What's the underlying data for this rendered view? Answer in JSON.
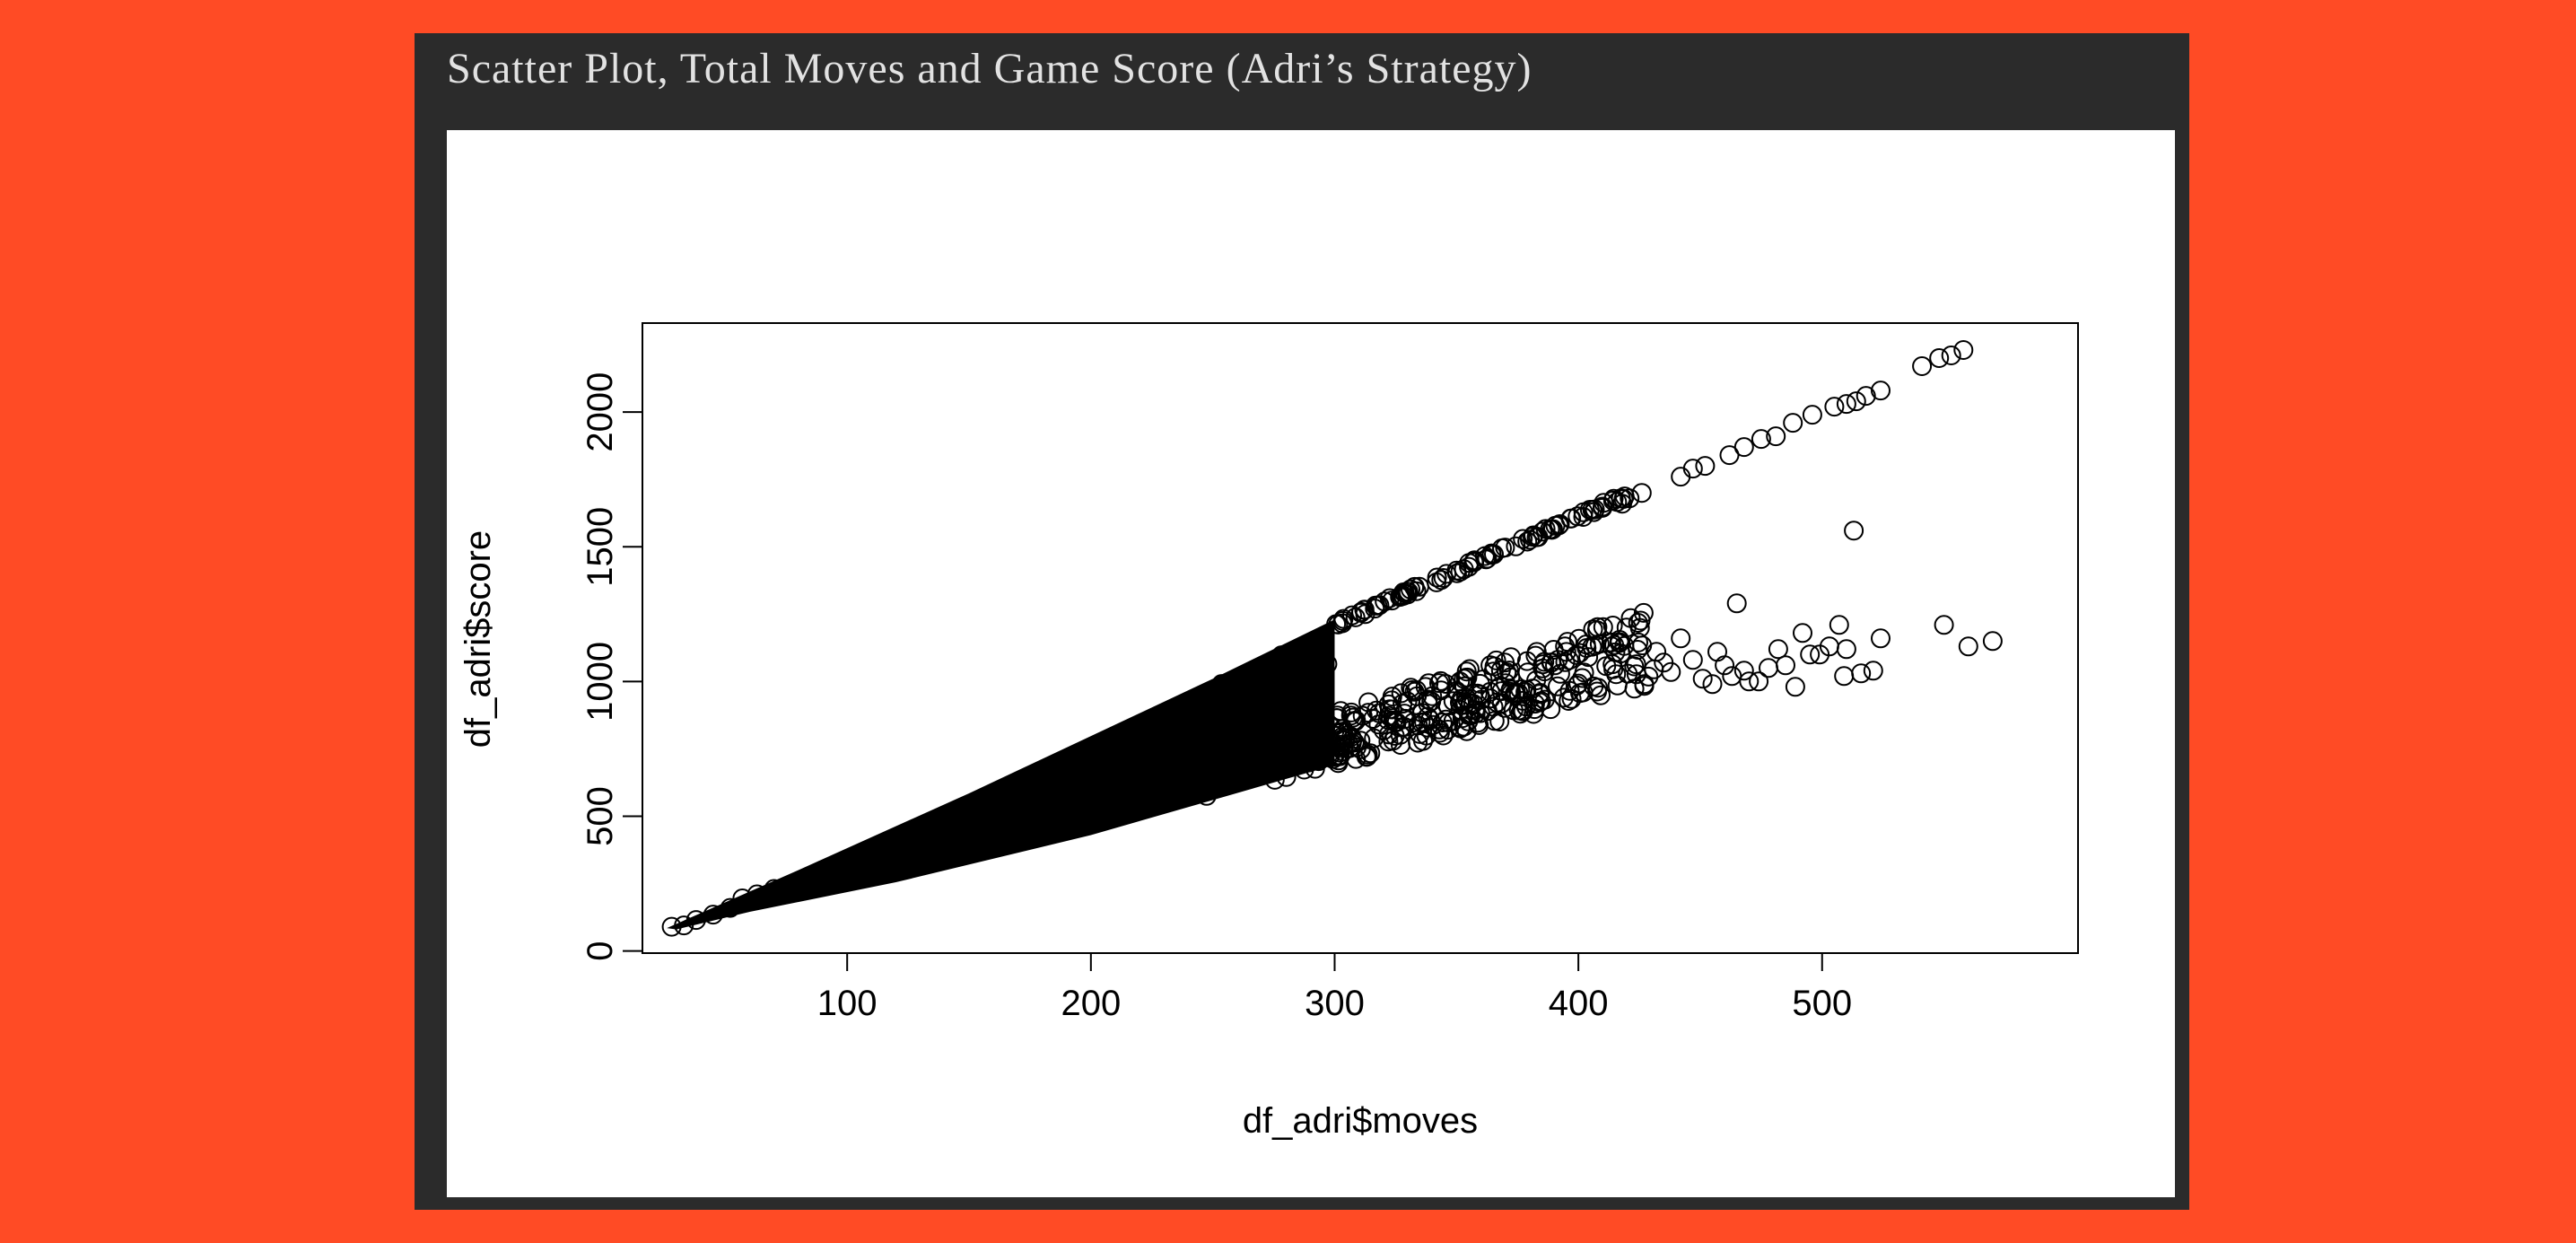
{
  "card": {
    "title": "Scatter Plot, Total Moves and Game Score (Adri’s Strategy)"
  },
  "colors": {
    "background": "#ff4b25",
    "frame": "#2b2b2b",
    "panel": "#ffffff",
    "ink": "#000000"
  },
  "chart_data": {
    "type": "scatter",
    "title": "",
    "xlabel": "df_adri$moves",
    "ylabel": "df_adri$score",
    "xlim": [
      16,
      605
    ],
    "ylim": [
      -8,
      2330
    ],
    "x_ticks": [
      100,
      200,
      300,
      400,
      500
    ],
    "y_ticks": [
      0,
      500,
      1000,
      1500,
      2000
    ],
    "marker": "open-circle",
    "grid": false,
    "legend": "none",
    "series": [
      {
        "points": [
          [
            28,
            90
          ],
          [
            33,
            95
          ],
          [
            38,
            115
          ],
          [
            45,
            135
          ],
          [
            52,
            160
          ],
          [
            57,
            195
          ],
          [
            63,
            210
          ],
          [
            70,
            230
          ],
          [
            80,
            255
          ],
          [
            90,
            300
          ],
          [
            427,
            990
          ],
          [
            431,
            1045
          ],
          [
            432,
            1110
          ],
          [
            435,
            1070
          ],
          [
            438,
            1035
          ],
          [
            442,
            1160
          ],
          [
            447,
            1080
          ],
          [
            451,
            1010
          ],
          [
            455,
            990
          ],
          [
            457,
            1110
          ],
          [
            460,
            1060
          ],
          [
            463,
            1020
          ],
          [
            468,
            1040
          ],
          [
            470,
            1000
          ],
          [
            474,
            1000
          ],
          [
            478,
            1050
          ],
          [
            482,
            1120
          ],
          [
            485,
            1060
          ],
          [
            489,
            980
          ],
          [
            492,
            1180
          ],
          [
            495,
            1100
          ],
          [
            499,
            1100
          ],
          [
            503,
            1130
          ],
          [
            507,
            1210
          ],
          [
            509,
            1020
          ],
          [
            510,
            1120
          ],
          [
            513,
            1560
          ],
          [
            516,
            1030
          ],
          [
            521,
            1040
          ],
          [
            524,
            1160
          ],
          [
            550,
            1210
          ],
          [
            560,
            1130
          ],
          [
            570,
            1150
          ],
          [
            465,
            1290
          ],
          [
            442,
            1760
          ],
          [
            447,
            1790
          ],
          [
            452,
            1800
          ],
          [
            462,
            1840
          ],
          [
            468,
            1870
          ],
          [
            475,
            1900
          ],
          [
            481,
            1910
          ],
          [
            488,
            1960
          ],
          [
            496,
            1990
          ],
          [
            505,
            2020
          ],
          [
            510,
            2030
          ],
          [
            514,
            2040
          ],
          [
            518,
            2060
          ],
          [
            524,
            2080
          ],
          [
            541,
            2170
          ],
          [
            548,
            2200
          ],
          [
            553,
            2210
          ],
          [
            558,
            2230
          ],
          [
            421,
            1680
          ],
          [
            426,
            1700
          ],
          [
            418,
            1660
          ]
        ]
      }
    ]
  }
}
